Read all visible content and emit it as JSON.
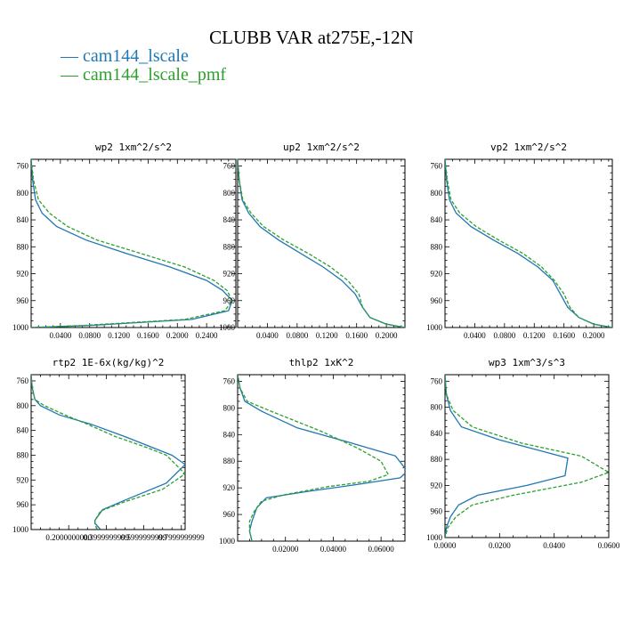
{
  "title": "CLUBB VAR at275E,-12N",
  "colors": {
    "lscale": "#1f77b4",
    "pmf": "#2ca02c"
  },
  "legend": [
    {
      "label": "— cam144_lscale",
      "color": "#1f77b4"
    },
    {
      "label": "— cam144_lscale_pmf",
      "color": "#2ca02c"
    }
  ],
  "chart_data": [
    {
      "type": "line",
      "title": "wp2  1xm^2/s^2",
      "xlim": [
        0,
        0.28
      ],
      "ylim": [
        1000,
        750
      ],
      "y_inverted": true,
      "xticks": [
        0.04,
        0.08,
        0.12,
        0.16,
        0.2,
        0.24
      ],
      "xtick_labels": [
        "0.0400",
        "0.0800",
        "0.1200",
        "0.1600",
        "0.2000",
        "0.2400"
      ],
      "yticks": [
        760,
        800,
        840,
        880,
        920,
        960,
        1000
      ],
      "series": [
        {
          "name": "cam144_lscale",
          "x": [
            0.0,
            0.002,
            0.006,
            0.015,
            0.035,
            0.075,
            0.13,
            0.19,
            0.24,
            0.262,
            0.275,
            0.27,
            0.22,
            0.08,
            0.0
          ],
          "y": [
            750,
            780,
            810,
            830,
            850,
            870,
            890,
            910,
            930,
            945,
            960,
            975,
            988,
            997,
            1000
          ]
        },
        {
          "name": "cam144_lscale_pmf",
          "x": [
            0.0,
            0.003,
            0.01,
            0.025,
            0.05,
            0.09,
            0.15,
            0.21,
            0.25,
            0.268,
            0.275,
            0.265,
            0.21,
            0.07,
            0.0
          ],
          "y": [
            750,
            780,
            810,
            830,
            850,
            870,
            890,
            910,
            930,
            945,
            960,
            975,
            988,
            997,
            1000
          ]
        }
      ]
    },
    {
      "type": "line",
      "title": "up2  1xm^2/s^2",
      "xlim": [
        0,
        0.225
      ],
      "ylim": [
        1000,
        750
      ],
      "y_inverted": true,
      "xticks": [
        0.04,
        0.08,
        0.12,
        0.16,
        0.2
      ],
      "xtick_labels": [
        "0.0400",
        "0.0800",
        "0.1200",
        "0.1600",
        "0.2000"
      ],
      "yticks": [
        760,
        800,
        840,
        880,
        920,
        960,
        1000
      ],
      "series": [
        {
          "name": "cam144_lscale",
          "x": [
            0.0,
            0.002,
            0.006,
            0.015,
            0.03,
            0.055,
            0.085,
            0.115,
            0.14,
            0.158,
            0.168,
            0.178,
            0.2,
            0.225
          ],
          "y": [
            750,
            780,
            810,
            830,
            850,
            870,
            890,
            910,
            930,
            950,
            970,
            985,
            995,
            1000
          ]
        },
        {
          "name": "cam144_lscale_pmf",
          "x": [
            0.0,
            0.002,
            0.007,
            0.018,
            0.035,
            0.062,
            0.095,
            0.125,
            0.148,
            0.163,
            0.168,
            0.178,
            0.2,
            0.225
          ],
          "y": [
            750,
            780,
            810,
            830,
            850,
            870,
            890,
            910,
            930,
            950,
            970,
            985,
            995,
            1000
          ]
        }
      ]
    },
    {
      "type": "line",
      "title": "vp2  1xm^2/s^2",
      "xlim": [
        0,
        0.225
      ],
      "ylim": [
        1000,
        750
      ],
      "y_inverted": true,
      "xticks": [
        0.04,
        0.08,
        0.12,
        0.16,
        0.2
      ],
      "xtick_labels": [
        "0.0400",
        "0.0800",
        "0.1200",
        "0.1600",
        "0.2000"
      ],
      "yticks": [
        760,
        800,
        840,
        880,
        920,
        960,
        1000
      ],
      "series": [
        {
          "name": "cam144_lscale",
          "x": [
            0.0,
            0.002,
            0.006,
            0.015,
            0.035,
            0.065,
            0.098,
            0.125,
            0.145,
            0.155,
            0.165,
            0.18,
            0.2,
            0.225
          ],
          "y": [
            750,
            780,
            810,
            830,
            850,
            870,
            890,
            910,
            930,
            950,
            970,
            985,
            995,
            1000
          ]
        },
        {
          "name": "cam144_lscale_pmf",
          "x": [
            0.0,
            0.003,
            0.008,
            0.02,
            0.042,
            0.072,
            0.105,
            0.13,
            0.147,
            0.16,
            0.168,
            0.18,
            0.2,
            0.225
          ],
          "y": [
            750,
            780,
            810,
            830,
            850,
            870,
            890,
            910,
            930,
            950,
            970,
            985,
            995,
            1000
          ]
        }
      ]
    },
    {
      "type": "line",
      "title": "rtp2  1E-6x(kg/kg)^2",
      "xlim": [
        0,
        0.82
      ],
      "ylim": [
        1000,
        750
      ],
      "y_inverted": true,
      "xticks": [
        0.2,
        0.4,
        0.6,
        0.8
      ],
      "xtick_labels": [
        "0.2000000000",
        "0.3999999999",
        "0.5999999999",
        "0.7999999999"
      ],
      "yticks": [
        760,
        800,
        840,
        880,
        920,
        960,
        1000
      ],
      "series": [
        {
          "name": "cam144_lscale",
          "x": [
            0.0,
            0.005,
            0.02,
            0.05,
            0.15,
            0.32,
            0.5,
            0.65,
            0.75,
            0.82,
            0.72,
            0.52,
            0.38,
            0.34,
            0.34,
            0.37
          ],
          "y": [
            750,
            770,
            790,
            800,
            815,
            830,
            850,
            868,
            880,
            895,
            925,
            950,
            968,
            985,
            990,
            1000
          ]
        },
        {
          "name": "cam144_lscale_pmf",
          "x": [
            0.0,
            0.005,
            0.02,
            0.07,
            0.18,
            0.3,
            0.45,
            0.62,
            0.72,
            0.82,
            0.7,
            0.5,
            0.37,
            0.34,
            0.34,
            0.35
          ],
          "y": [
            750,
            770,
            790,
            800,
            815,
            830,
            850,
            868,
            880,
            910,
            935,
            955,
            970,
            985,
            990,
            1000
          ]
        }
      ]
    },
    {
      "type": "line",
      "title": "thlp2  1xK^2",
      "xlim": [
        0,
        0.07
      ],
      "ylim": [
        1000,
        750
      ],
      "y_inverted": true,
      "xticks": [
        0.02,
        0.04,
        0.06
      ],
      "xtick_labels": [
        "0.02000",
        "0.04000",
        "0.06000"
      ],
      "yticks": [
        760,
        800,
        840,
        880,
        920,
        960,
        1000
      ],
      "series": [
        {
          "name": "cam144_lscale",
          "x": [
            0.0,
            0.001,
            0.003,
            0.01,
            0.025,
            0.045,
            0.066,
            0.071,
            0.068,
            0.05,
            0.03,
            0.012,
            0.008,
            0.006,
            0.005,
            0.006
          ],
          "y": [
            750,
            770,
            790,
            805,
            830,
            850,
            872,
            895,
            905,
            915,
            925,
            935,
            950,
            970,
            985,
            1000
          ]
        },
        {
          "name": "cam144_lscale_pmf",
          "x": [
            0.0,
            0.001,
            0.004,
            0.014,
            0.035,
            0.05,
            0.06,
            0.063,
            0.055,
            0.038,
            0.02,
            0.01,
            0.007,
            0.005,
            0.005,
            0.006
          ],
          "y": [
            750,
            770,
            790,
            805,
            835,
            860,
            880,
            900,
            910,
            918,
            930,
            940,
            955,
            970,
            985,
            1000
          ]
        }
      ]
    },
    {
      "type": "line",
      "title": "wp3  1xm^3/s^3",
      "xlim": [
        0,
        0.06
      ],
      "ylim": [
        1000,
        750
      ],
      "y_inverted": true,
      "xticks": [
        0.0,
        0.02,
        0.04,
        0.06
      ],
      "xtick_labels": [
        "0.0000",
        "0.0200",
        "0.0400",
        "0.0600"
      ],
      "yticks": [
        760,
        800,
        840,
        880,
        920,
        960,
        1000
      ],
      "series": [
        {
          "name": "cam144_lscale",
          "x": [
            0.0,
            0.0005,
            0.002,
            0.006,
            0.02,
            0.045,
            0.044,
            0.03,
            0.012,
            0.005,
            0.002,
            0.0005,
            0.0
          ],
          "y": [
            750,
            780,
            805,
            830,
            850,
            878,
            905,
            920,
            935,
            950,
            968,
            985,
            1000
          ]
        },
        {
          "name": "cam144_lscale_pmf",
          "x": [
            0.0,
            0.0005,
            0.003,
            0.01,
            0.028,
            0.05,
            0.06,
            0.05,
            0.025,
            0.01,
            0.004,
            0.001,
            0.0
          ],
          "y": [
            750,
            780,
            805,
            830,
            855,
            875,
            900,
            915,
            935,
            950,
            968,
            985,
            1000
          ]
        }
      ]
    }
  ]
}
